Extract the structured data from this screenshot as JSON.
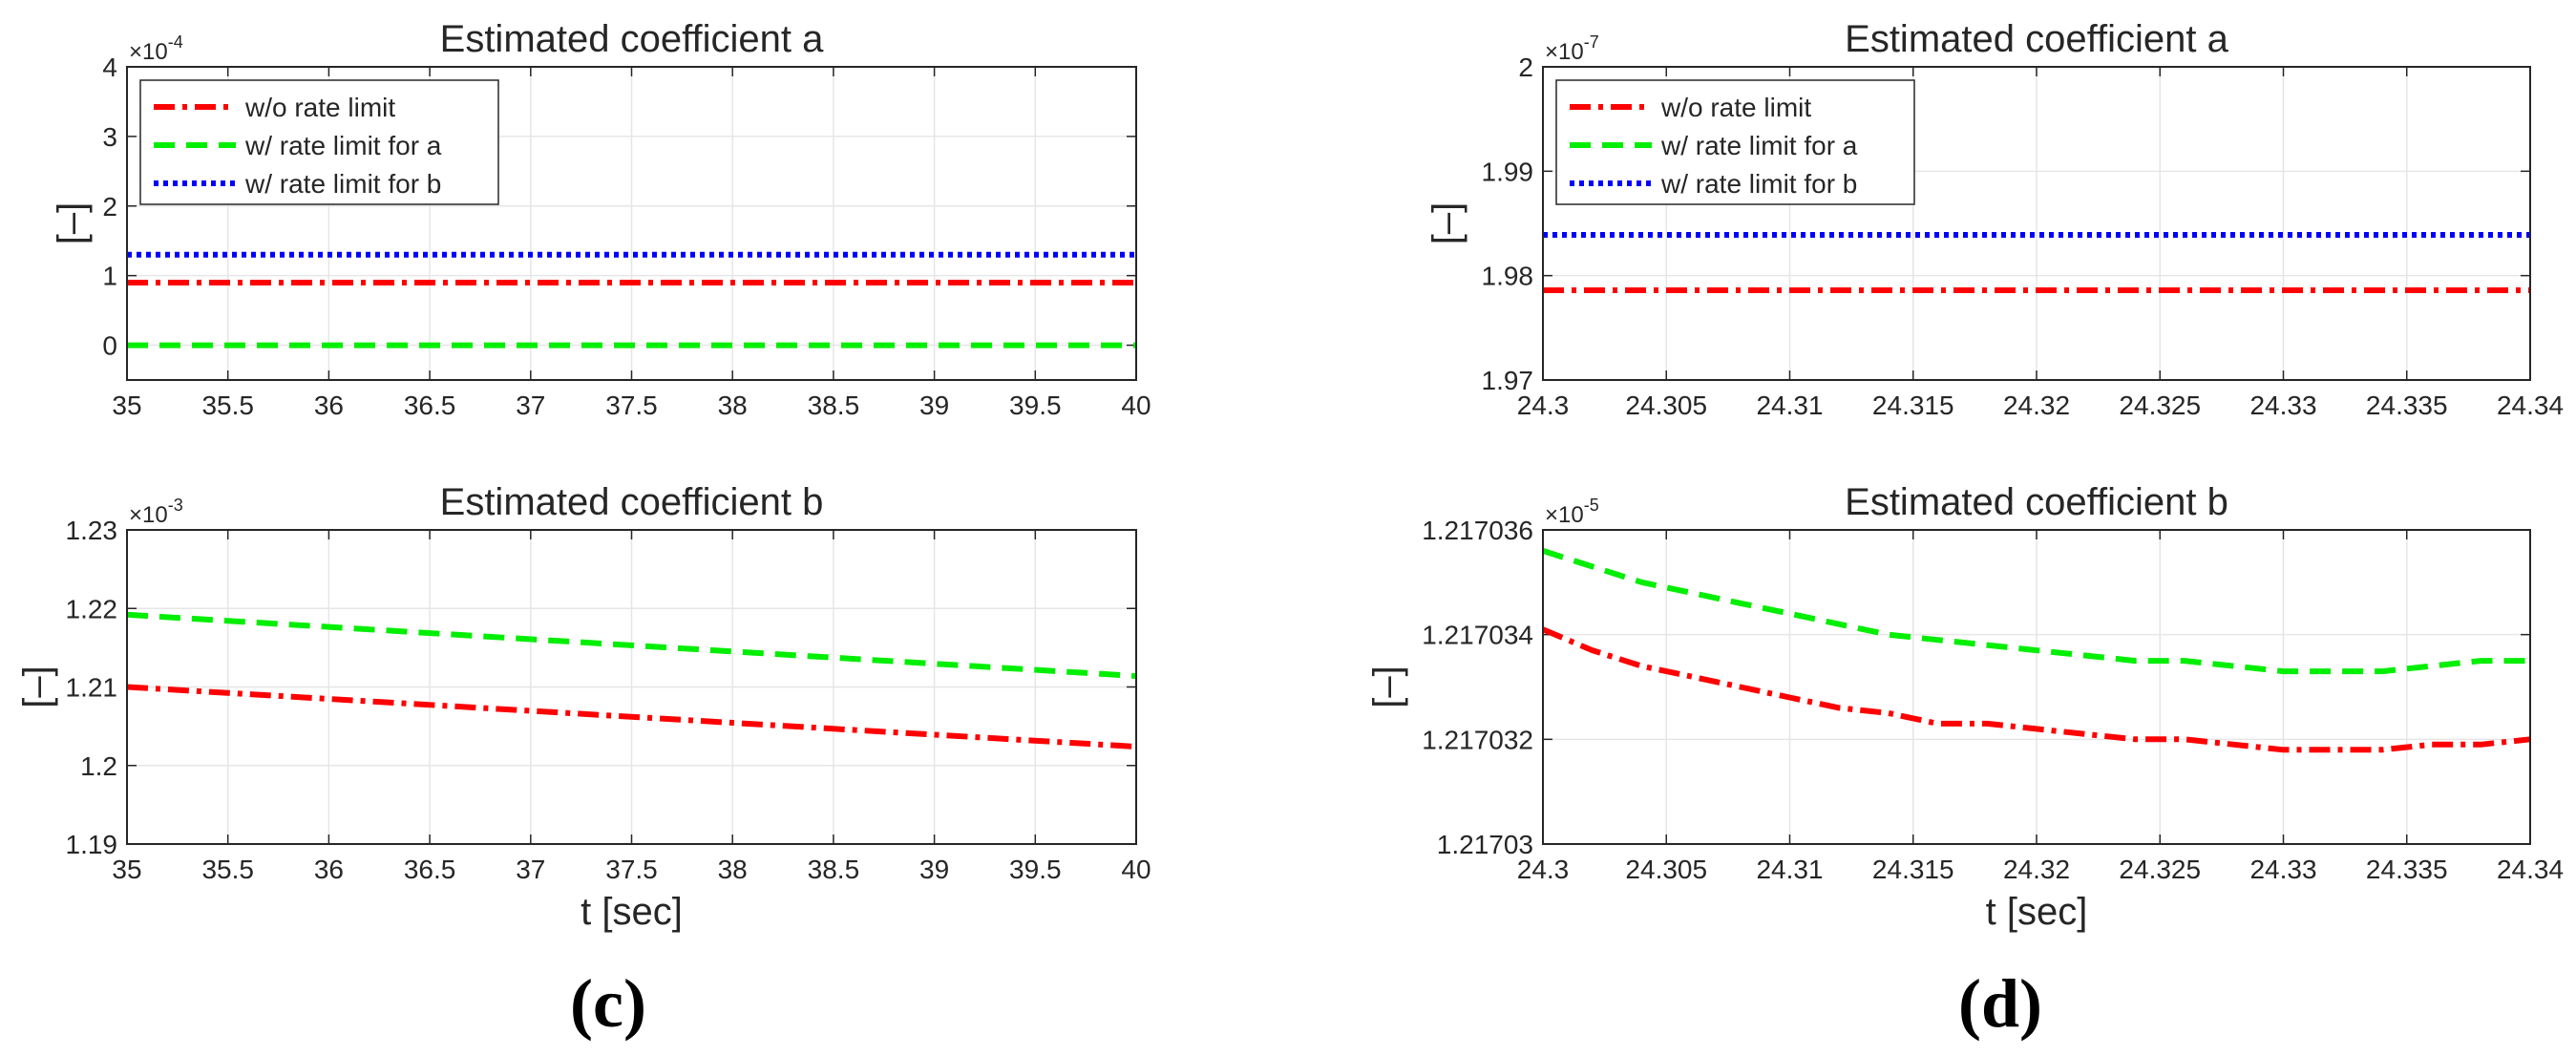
{
  "colors": {
    "wo": "#ff0000",
    "wa": "#00ee00",
    "wb": "#0000ff",
    "grid": "#e6e6e6",
    "axis": "#262626"
  },
  "panel_labels": {
    "left": "(c)",
    "right": "(d)"
  },
  "chart_data": [
    {
      "id": "c-top",
      "type": "line",
      "title": "Estimated coefficient a",
      "ylabel": "[–]",
      "xlabel": "",
      "multiplier": "×10",
      "multiplier_exp": "-4",
      "xlim": [
        35,
        40
      ],
      "ylim": [
        -0.5,
        4
      ],
      "xticks": [
        "35",
        "35.5",
        "36",
        "36.5",
        "37",
        "37.5",
        "38",
        "38.5",
        "39",
        "39.5",
        "40"
      ],
      "yticks": [
        "0",
        "1",
        "2",
        "3",
        "4"
      ],
      "grid": true,
      "legend": {
        "location": "top-left",
        "entries": [
          "w/o rate limit",
          "w/ rate limit for a",
          "w/ rate limit for b"
        ]
      },
      "series": [
        {
          "name": "w/o rate limit",
          "style": "dashdot",
          "x": [
            35,
            40
          ],
          "y": [
            0.9,
            0.9
          ]
        },
        {
          "name": "w/ rate limit for a",
          "style": "dashed",
          "x": [
            35,
            40
          ],
          "y": [
            0.0,
            0.0
          ]
        },
        {
          "name": "w/ rate limit for b",
          "style": "dotted",
          "x": [
            35,
            40
          ],
          "y": [
            1.3,
            1.3
          ]
        }
      ]
    },
    {
      "id": "c-bottom",
      "type": "line",
      "title": "Estimated coefficient b",
      "ylabel": "[–]",
      "xlabel": "t [sec]",
      "multiplier": "×10",
      "multiplier_exp": "-3",
      "xlim": [
        35,
        40
      ],
      "ylim": [
        1.19,
        1.23
      ],
      "xticks": [
        "35",
        "35.5",
        "36",
        "36.5",
        "37",
        "37.5",
        "38",
        "38.5",
        "39",
        "39.5",
        "40"
      ],
      "yticks": [
        "1.19",
        "1.2",
        "1.21",
        "1.22",
        "1.23"
      ],
      "grid": true,
      "series": [
        {
          "name": "w/o rate limit",
          "style": "dashdot",
          "x": [
            35,
            40
          ],
          "y": [
            1.21,
            1.2024
          ]
        },
        {
          "name": "w/ rate limit for a",
          "style": "dashed",
          "x": [
            35,
            40
          ],
          "y": [
            1.2192,
            1.2114
          ]
        }
      ]
    },
    {
      "id": "d-top",
      "type": "line",
      "title": "Estimated coefficient a",
      "ylabel": "[–]",
      "xlabel": "",
      "multiplier": "×10",
      "multiplier_exp": "-7",
      "xlim": [
        24.3,
        24.34
      ],
      "ylim": [
        1.97,
        2.0
      ],
      "xticks": [
        "24.3",
        "24.305",
        "24.31",
        "24.315",
        "24.32",
        "24.325",
        "24.33",
        "24.335",
        "24.34"
      ],
      "yticks": [
        "1.97",
        "1.98",
        "1.99",
        "2"
      ],
      "grid": true,
      "legend": {
        "location": "top-left",
        "entries": [
          "w/o rate limit",
          "w/ rate limit for a",
          "w/ rate limit for b"
        ]
      },
      "series": [
        {
          "name": "w/o rate limit",
          "style": "dashdot",
          "x": [
            24.3,
            24.34
          ],
          "y": [
            1.9786,
            1.9786
          ]
        },
        {
          "name": "w/ rate limit for b",
          "style": "dotted",
          "x": [
            24.3,
            24.34
          ],
          "y": [
            1.9839,
            1.9839
          ]
        }
      ]
    },
    {
      "id": "d-bottom",
      "type": "line",
      "title": "Estimated coefficient b",
      "ylabel": "[–]",
      "xlabel": "t [sec]",
      "multiplier": "×10",
      "multiplier_exp": "-5",
      "xlim": [
        24.3,
        24.34
      ],
      "ylim": [
        1.21703,
        1.217036
      ],
      "xticks": [
        "24.3",
        "24.305",
        "24.31",
        "24.315",
        "24.32",
        "24.325",
        "24.33",
        "24.335",
        "24.34"
      ],
      "yticks": [
        "1.21703",
        "1.217032",
        "1.217034",
        "1.217036"
      ],
      "grid": true,
      "series": [
        {
          "name": "w/o rate limit",
          "style": "dashdot",
          "x": [
            24.3,
            24.302,
            24.304,
            24.306,
            24.308,
            24.31,
            24.312,
            24.314,
            24.316,
            24.318,
            24.32,
            24.322,
            24.324,
            24.326,
            24.328,
            24.33,
            24.332,
            24.334,
            24.336,
            24.338,
            24.34
          ],
          "y": [
            1.2170341,
            1.2170337,
            1.2170334,
            1.2170332,
            1.217033,
            1.2170328,
            1.2170326,
            1.2170325,
            1.2170323,
            1.2170323,
            1.2170322,
            1.2170321,
            1.217032,
            1.217032,
            1.2170319,
            1.2170318,
            1.2170318,
            1.2170318,
            1.2170319,
            1.2170319,
            1.217032
          ]
        },
        {
          "name": "w/ rate limit for a",
          "style": "dashed",
          "x": [
            24.3,
            24.302,
            24.304,
            24.306,
            24.308,
            24.31,
            24.312,
            24.314,
            24.316,
            24.318,
            24.32,
            24.322,
            24.324,
            24.326,
            24.328,
            24.33,
            24.332,
            24.334,
            24.336,
            24.338,
            24.34
          ],
          "y": [
            1.2170356,
            1.2170353,
            1.217035,
            1.2170348,
            1.2170346,
            1.2170344,
            1.2170342,
            1.217034,
            1.2170339,
            1.2170338,
            1.2170337,
            1.2170336,
            1.2170335,
            1.2170335,
            1.2170334,
            1.2170333,
            1.2170333,
            1.2170333,
            1.2170334,
            1.2170335,
            1.2170335
          ]
        }
      ]
    }
  ]
}
